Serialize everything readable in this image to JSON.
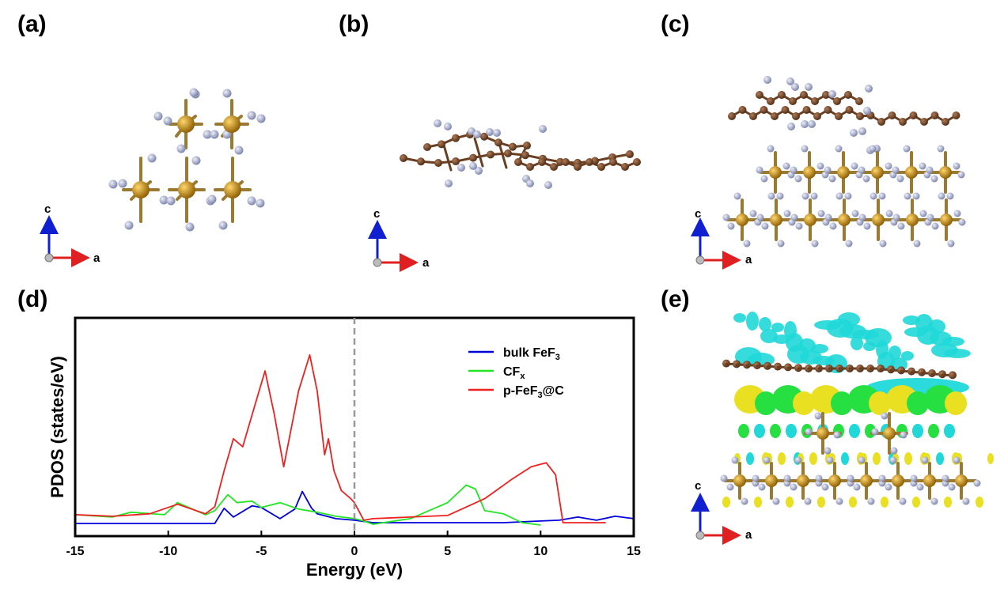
{
  "panels": {
    "a": "(a)",
    "b": "(b)",
    "c": "(c)",
    "d": "(d)",
    "e": "(e)"
  },
  "axis_labels": {
    "c": "c",
    "a": "a"
  },
  "colors": {
    "fe_atom": "#b8860b",
    "f_atom": "#aab0cc",
    "c_atom": "#7a4a2a",
    "charge_accumulation": "#e8e020",
    "charge_depletion": "#20d8d8"
  },
  "chart_data": {
    "type": "line",
    "xlabel": "Energy (eV)",
    "ylabel": "PDOS (states/eV)",
    "xlim": [
      -15,
      15
    ],
    "xticks": [
      "-15",
      "-10",
      "-5",
      "0",
      "5",
      "10",
      "15"
    ],
    "fermi_line_x": 0,
    "legend_position": "top-right",
    "series": [
      {
        "name": "bulk FeF3",
        "legend_main": "bulk FeF",
        "legend_sub": "3",
        "legend_tail": "",
        "color": "#0000dd",
        "x": [
          -15,
          -7.5,
          -7,
          -6.5,
          -5.5,
          -5,
          -4,
          -3.2,
          -2.8,
          -2.3,
          -2,
          -1,
          0,
          1,
          5,
          8,
          10,
          11,
          12,
          13,
          14,
          15
        ],
        "y": [
          0.4,
          0.4,
          2.3,
          1.2,
          2.6,
          2.4,
          1.0,
          2.2,
          4.4,
          2.3,
          1.6,
          1.0,
          0.8,
          0.5,
          0.5,
          0.5,
          0.7,
          0.8,
          1.2,
          0.8,
          1.3,
          1.0
        ]
      },
      {
        "name": "CFx",
        "legend_main": "CF",
        "legend_sub": "x",
        "legend_tail": "",
        "color": "#22e622",
        "x": [
          -15,
          -13,
          -12,
          -10.2,
          -9.5,
          -8,
          -7.5,
          -6.8,
          -6.3,
          -5.5,
          -5,
          -4,
          -3,
          -2,
          -1,
          0,
          0.5,
          1,
          3,
          5,
          6,
          6.5,
          7,
          8,
          9,
          10
        ],
        "y": [
          1.5,
          1.2,
          1.8,
          1.5,
          3.0,
          1.5,
          2.0,
          4.0,
          3.0,
          3.2,
          2.4,
          3.0,
          2.2,
          1.8,
          1.3,
          1.0,
          0.7,
          0.3,
          1.0,
          3.0,
          5.2,
          4.7,
          2.0,
          1.6,
          0.5,
          0.2
        ]
      },
      {
        "name": "p-FeF3@C",
        "legend_main": "p-FeF",
        "legend_sub": "3",
        "legend_tail": "@C",
        "color": "#ee2020",
        "x": [
          -15,
          -13,
          -11,
          -9.5,
          -8,
          -7.5,
          -7,
          -6.5,
          -6,
          -5.5,
          -4.8,
          -4.3,
          -3.8,
          -3,
          -2.4,
          -2,
          -1.6,
          -1.4,
          -1.1,
          -0.7,
          -0.2,
          0,
          0.5,
          1,
          3,
          5,
          7,
          8.5,
          9.5,
          10.3,
          10.8,
          11.2,
          12,
          13.5
        ],
        "y": [
          1.5,
          1.3,
          1.6,
          2.8,
          1.6,
          2.5,
          7.0,
          11.0,
          10.0,
          14.0,
          19.5,
          14.0,
          7.5,
          17.0,
          21.5,
          17.0,
          9.0,
          11.0,
          7.0,
          4.5,
          3.5,
          3.0,
          0.8,
          1.0,
          1.2,
          1.4,
          3.5,
          6.0,
          7.5,
          8.0,
          6.5,
          0.5,
          0.5,
          0.5
        ]
      }
    ]
  }
}
